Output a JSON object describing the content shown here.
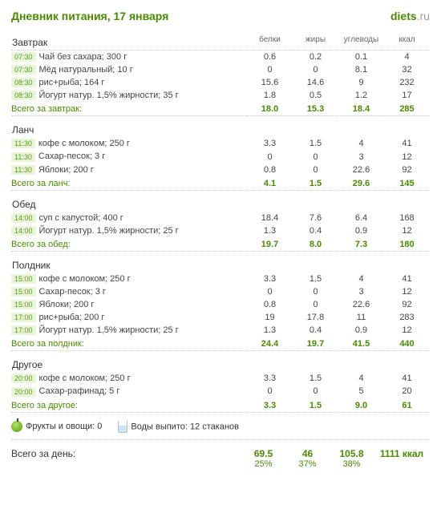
{
  "title": "Дневник питания, 17 января",
  "brand_prefix": "diets",
  "brand_suffix": ".ru",
  "columns": {
    "c1": "белки",
    "c2": "жиры",
    "c3": "углеводы",
    "c4": "ккал"
  },
  "meals": {
    "breakfast": {
      "title": "Завтрак",
      "rows": [
        {
          "time": "07:30",
          "name": "Чай без сахара; 300 г",
          "p": "0.6",
          "f": "0.2",
          "c": "0.1",
          "k": "4"
        },
        {
          "time": "07:30",
          "name": "Мёд натуральный; 10 г",
          "p": "0",
          "f": "0",
          "c": "8.1",
          "k": "32"
        },
        {
          "time": "08:30",
          "name": "рис+рыба; 164 г",
          "p": "15.6",
          "f": "14.6",
          "c": "9",
          "k": "232"
        },
        {
          "time": "08:30",
          "name": "Йогурт натур. 1,5% жирности; 35 г",
          "p": "1.8",
          "f": "0.5",
          "c": "1.2",
          "k": "17"
        }
      ],
      "total_label": "Всего за завтрак:",
      "tp": "18.0",
      "tf": "15.3",
      "tc": "18.4",
      "tk": "285"
    },
    "lunch": {
      "title": "Ланч",
      "rows": [
        {
          "time": "11:30",
          "name": "кофе с молоком; 250 г",
          "p": "3.3",
          "f": "1.5",
          "c": "4",
          "k": "41"
        },
        {
          "time": "11:30",
          "name": "Сахар-песок; 3 г",
          "p": "0",
          "f": "0",
          "c": "3",
          "k": "12"
        },
        {
          "time": "11:30",
          "name": "Яблоки; 200 г",
          "p": "0.8",
          "f": "0",
          "c": "22.6",
          "k": "92"
        }
      ],
      "total_label": "Всего за ланч:",
      "tp": "4.1",
      "tf": "1.5",
      "tc": "29.6",
      "tk": "145"
    },
    "dinner": {
      "title": "Обед",
      "rows": [
        {
          "time": "14:00",
          "name": "суп с капустой; 400 г",
          "p": "18.4",
          "f": "7.6",
          "c": "6.4",
          "k": "168"
        },
        {
          "time": "14:00",
          "name": "Йогурт натур. 1,5% жирности; 25 г",
          "p": "1.3",
          "f": "0.4",
          "c": "0.9",
          "k": "12"
        }
      ],
      "total_label": "Всего за обед:",
      "tp": "19.7",
      "tf": "8.0",
      "tc": "7.3",
      "tk": "180"
    },
    "snack": {
      "title": "Полдник",
      "rows": [
        {
          "time": "15:00",
          "name": "кофе с молоком; 250 г",
          "p": "3.3",
          "f": "1.5",
          "c": "4",
          "k": "41"
        },
        {
          "time": "15:00",
          "name": "Сахар-песок; 3 г",
          "p": "0",
          "f": "0",
          "c": "3",
          "k": "12"
        },
        {
          "time": "15:00",
          "name": "Яблоки; 200 г",
          "p": "0.8",
          "f": "0",
          "c": "22.6",
          "k": "92"
        },
        {
          "time": "17:00",
          "name": "рис+рыба; 200 г",
          "p": "19",
          "f": "17.8",
          "c": "11",
          "k": "283"
        },
        {
          "time": "17:00",
          "name": "Йогурт натур. 1,5% жирности; 25 г",
          "p": "1.3",
          "f": "0.4",
          "c": "0.9",
          "k": "12"
        }
      ],
      "total_label": "Всего за полдник:",
      "tp": "24.4",
      "tf": "19.7",
      "tc": "41.5",
      "tk": "440"
    },
    "other": {
      "title": "Другое",
      "rows": [
        {
          "time": "20:00",
          "name": "кофе с молоком; 250 г",
          "p": "3.3",
          "f": "1.5",
          "c": "4",
          "k": "41"
        },
        {
          "time": "20:00",
          "name": "Сахар-рафинад; 5 г",
          "p": "0",
          "f": "0",
          "c": "5",
          "k": "20"
        }
      ],
      "total_label": "Всего за другое:",
      "tp": "3.3",
      "tf": "1.5",
      "tc": "9.0",
      "tk": "61"
    }
  },
  "footer": {
    "fruits_label": "Фрукты и овощи: 0",
    "water_label": "Воды выпито: 12 стаканов"
  },
  "day_total": {
    "label": "Всего за день:",
    "p": "69.5",
    "f": "46",
    "c": "105.8",
    "k": "1111 ккал",
    "pp": "25%",
    "pf": "37%",
    "pc": "38%"
  },
  "colors": {
    "accent": "#4a8a00",
    "time_bg": "#e9f5d8"
  }
}
